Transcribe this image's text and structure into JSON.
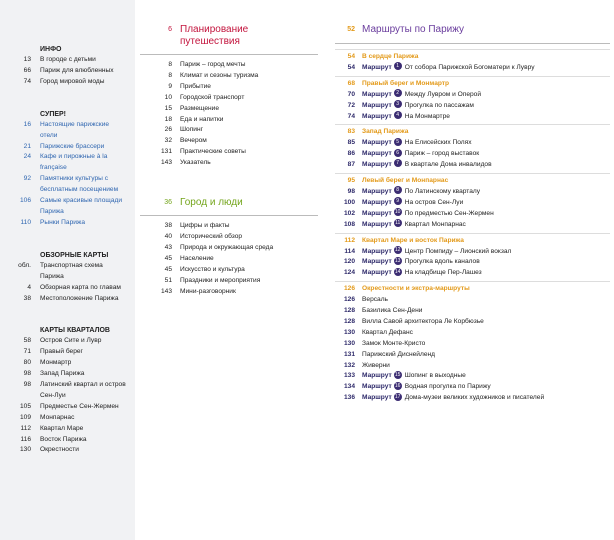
{
  "sidebar": {
    "sections": [
      {
        "title": "ИНФО",
        "items": [
          {
            "page": "13",
            "text": "В городе с детьми"
          },
          {
            "page": "66",
            "text": "Париж для влюбленных"
          },
          {
            "page": "74",
            "text": "Город мировой моды"
          }
        ]
      },
      {
        "title": "СУПЕР!",
        "items": [
          {
            "page": "16",
            "text": "Настоящие парижские отели"
          },
          {
            "page": "21",
            "text": "Парижские брассери"
          },
          {
            "page": "24",
            "text": "Кафе и пирожные à la française"
          },
          {
            "page": "92",
            "text": "Памятники культуры с бесплатным посещением"
          },
          {
            "page": "106",
            "text": "Самые красивые площади Парижа"
          },
          {
            "page": "110",
            "text": "Рынки Парижа"
          }
        ]
      },
      {
        "title": "ОБЗОРНЫЕ КАРТЫ",
        "items": [
          {
            "page": "обл.",
            "text": "Транспортная схема Парижа"
          },
          {
            "page": "4",
            "text": "Обзорная карта по главам"
          },
          {
            "page": "38",
            "text": "Местоположение Парижа"
          }
        ]
      },
      {
        "title": "КАРТЫ КВАРТАЛОВ",
        "items": [
          {
            "page": "58",
            "text": "Остров Сите и Лувр"
          },
          {
            "page": "71",
            "text": "Правый берег"
          },
          {
            "page": "80",
            "text": "Монмартр"
          },
          {
            "page": "98",
            "text": "Запад Парижа"
          },
          {
            "page": "98",
            "text": "Латинский квартал и остров Сен-Луи"
          },
          {
            "page": "105",
            "text": "Предместье Сен-Жермен"
          },
          {
            "page": "109",
            "text": "Монпарнас"
          },
          {
            "page": "112",
            "text": "Квартал Маре"
          },
          {
            "page": "116",
            "text": "Восток Парижа"
          },
          {
            "page": "130",
            "text": "Окрестности"
          }
        ]
      }
    ]
  },
  "planning": {
    "page": "6",
    "title": "Планирование путешествия",
    "items": [
      {
        "page": "8",
        "text": "Париж – город мечты"
      },
      {
        "page": "8",
        "text": "Климат и сезоны туризма"
      },
      {
        "page": "9",
        "text": "Прибытие"
      },
      {
        "page": "10",
        "text": "Городской транспорт"
      },
      {
        "page": "15",
        "text": "Размещение"
      },
      {
        "page": "18",
        "text": "Еда и напитки"
      },
      {
        "page": "26",
        "text": "Шопинг"
      },
      {
        "page": "32",
        "text": "Вечером"
      },
      {
        "page": "131",
        "text": "Практические советы"
      },
      {
        "page": "143",
        "text": "Указатель"
      }
    ]
  },
  "people": {
    "page": "36",
    "title": "Город и люди",
    "items": [
      {
        "page": "38",
        "text": "Цифры и факты"
      },
      {
        "page": "40",
        "text": "Исторический обзор"
      },
      {
        "page": "43",
        "text": "Природа и окружающая среда"
      },
      {
        "page": "45",
        "text": "Население"
      },
      {
        "page": "45",
        "text": "Искусство и культура"
      },
      {
        "page": "51",
        "text": "Праздники и мероприятия"
      },
      {
        "page": "143",
        "text": "Мини-разговорник"
      }
    ]
  },
  "routes": {
    "page": "52",
    "title": "Маршруты по Парижу",
    "sections": [
      {
        "page": "54",
        "title": "В сердце Парижа",
        "items": [
          {
            "page": "54",
            "label": "Маршрут",
            "num": "1",
            "text": "От собора Парижской Богоматери к Лувру"
          }
        ]
      },
      {
        "page": "68",
        "title": "Правый берег и Монмартр",
        "items": [
          {
            "page": "70",
            "label": "Маршрут",
            "num": "2",
            "text": "Между Лувром и Оперой"
          },
          {
            "page": "72",
            "label": "Маршрут",
            "num": "3",
            "text": "Прогулка по пассажам"
          },
          {
            "page": "74",
            "label": "Маршрут",
            "num": "4",
            "text": "На Монмартре"
          }
        ]
      },
      {
        "page": "83",
        "title": "Запад Парижа",
        "items": [
          {
            "page": "85",
            "label": "Маршрут",
            "num": "5",
            "text": "На Елисейских Полях"
          },
          {
            "page": "86",
            "label": "Маршрут",
            "num": "6",
            "text": "Париж – город выставок"
          },
          {
            "page": "87",
            "label": "Маршрут",
            "num": "7",
            "text": "В квартале Дома инвалидов"
          }
        ]
      },
      {
        "page": "95",
        "title": "Левый берег и Монпарнас",
        "items": [
          {
            "page": "98",
            "label": "Маршрут",
            "num": "8",
            "text": "По Латинскому кварталу"
          },
          {
            "page": "100",
            "label": "Маршрут",
            "num": "9",
            "text": "На остров Сен-Луи"
          },
          {
            "page": "102",
            "label": "Маршрут",
            "num": "10",
            "text": "По предместью Сен-Жермен"
          },
          {
            "page": "108",
            "label": "Маршрут",
            "num": "11",
            "text": "Квартал Монпарнас"
          }
        ]
      },
      {
        "page": "112",
        "title": "Квартал Маре и восток Парижа",
        "items": [
          {
            "page": "114",
            "label": "Маршрут",
            "num": "12",
            "text": "Центр Помпиду – Лионский вокзал"
          },
          {
            "page": "120",
            "label": "Маршрут",
            "num": "13",
            "text": "Прогулка вдоль каналов"
          },
          {
            "page": "124",
            "label": "Маршрут",
            "num": "14",
            "text": "На кладбище Пер-Лашез"
          }
        ]
      },
      {
        "page": "126",
        "title": "Окрестности и экстра-маршруты",
        "items": [
          {
            "page": "126",
            "text": "Версаль"
          },
          {
            "page": "128",
            "text": "Базилика Сен-Дени"
          },
          {
            "page": "128",
            "text": "Вилла Савой архитектора Ле Корбюзье"
          },
          {
            "page": "130",
            "text": "Квартал Дефанс"
          },
          {
            "page": "130",
            "text": "Замок Монте-Кристо"
          },
          {
            "page": "131",
            "text": "Парижский Диснейленд"
          },
          {
            "page": "132",
            "text": "Живерни"
          },
          {
            "page": "133",
            "label": "Маршрут",
            "num": "15",
            "text": "Шопинг в выходные"
          },
          {
            "page": "134",
            "label": "Маршрут",
            "num": "16",
            "text": "Водная прогулка по Парижу"
          },
          {
            "page": "136",
            "label": "Маршрут",
            "num": "17",
            "text": "Дома-музеи великих художников и писателей"
          }
        ]
      }
    ]
  }
}
